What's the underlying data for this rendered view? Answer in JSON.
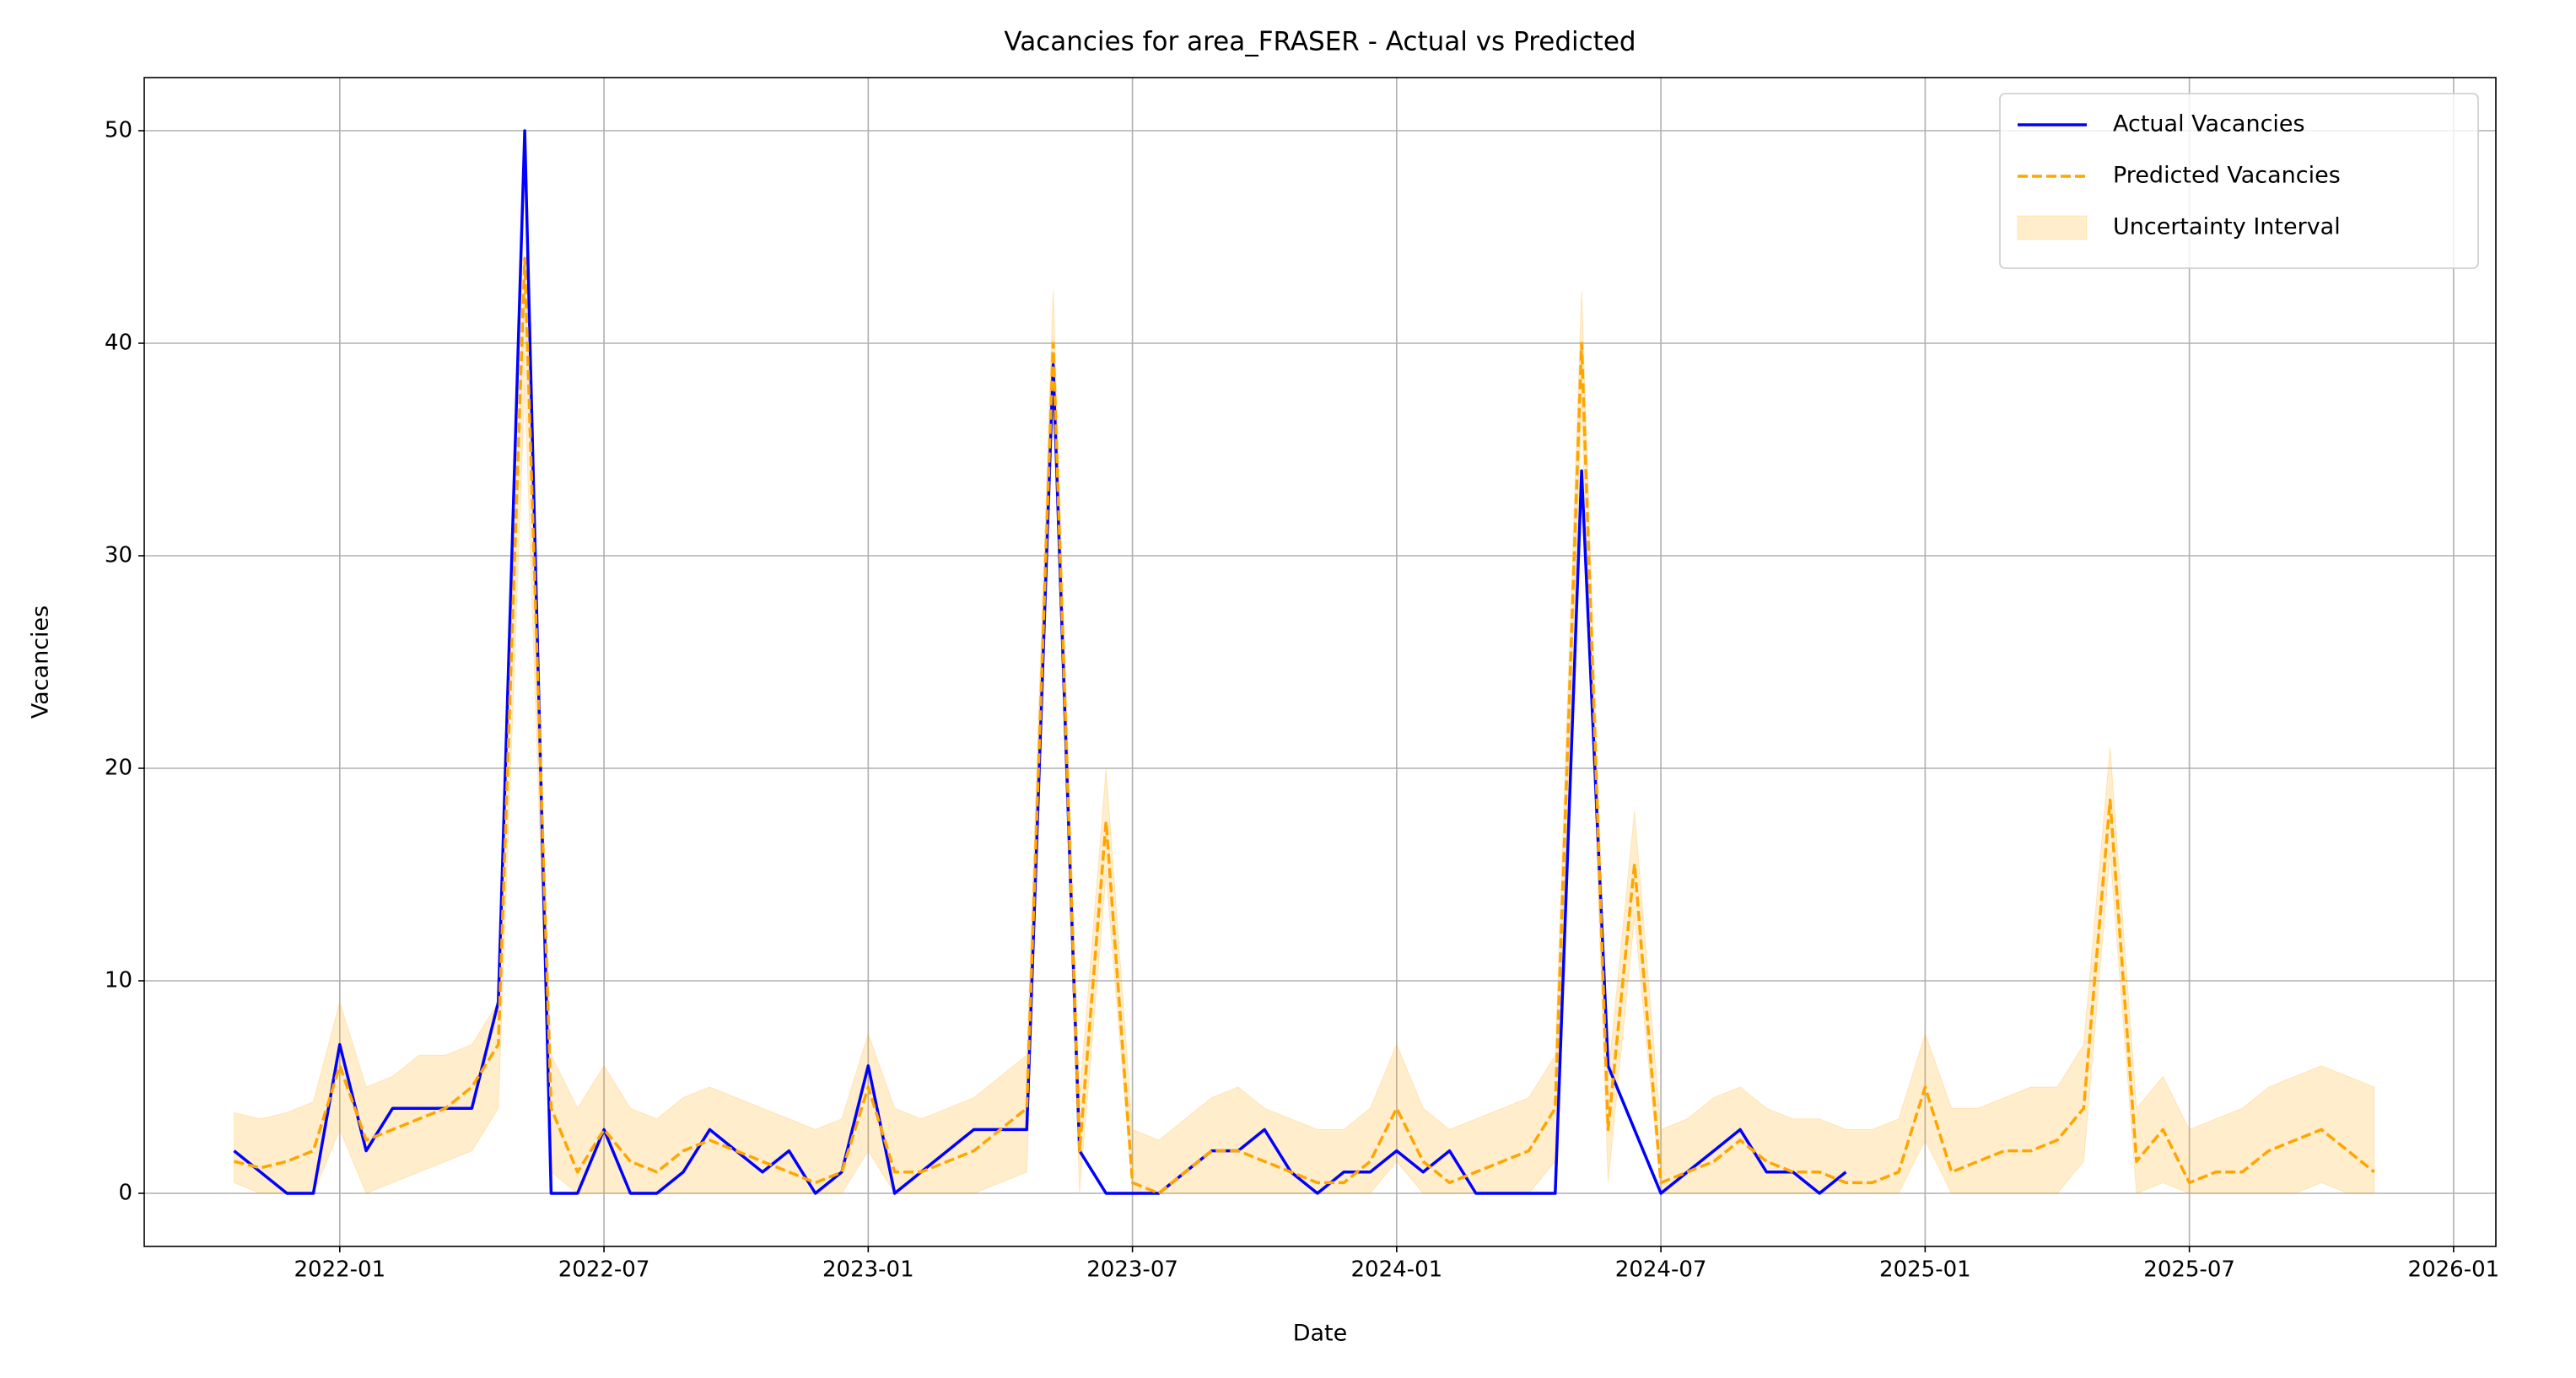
{
  "chart_data": {
    "type": "line",
    "title": "Vacancies for area_FRASER - Actual vs Predicted",
    "x_label": "Date",
    "y_label": "Vacancies",
    "x": [
      2021.8,
      2021.85,
      2021.9,
      2021.95,
      2022.0,
      2022.05,
      2022.1,
      2022.15,
      2022.2,
      2022.25,
      2022.3,
      2022.35,
      2022.4,
      2022.45,
      2022.5,
      2022.55,
      2022.6,
      2022.65,
      2022.7,
      2022.75,
      2022.8,
      2022.85,
      2022.9,
      2022.95,
      2023.0,
      2023.05,
      2023.1,
      2023.15,
      2023.2,
      2023.25,
      2023.3,
      2023.35,
      2023.4,
      2023.45,
      2023.5,
      2023.55,
      2023.6,
      2023.65,
      2023.7,
      2023.75,
      2023.8,
      2023.85,
      2023.9,
      2023.95,
      2024.0,
      2024.05,
      2024.1,
      2024.15,
      2024.2,
      2024.25,
      2024.3,
      2024.35,
      2024.4,
      2024.45,
      2024.5,
      2024.55,
      2024.6,
      2024.65,
      2024.7,
      2024.75,
      2024.8,
      2024.85,
      2024.9,
      2024.95,
      2025.0,
      2025.05,
      2025.1,
      2025.15,
      2025.2,
      2025.25,
      2025.3,
      2025.35,
      2025.4,
      2025.45,
      2025.5,
      2025.55,
      2025.6,
      2025.65,
      2025.7,
      2025.75,
      2025.8,
      2025.85
    ],
    "series": [
      {
        "name": "Actual Vacancies",
        "color": "#0000ff",
        "style": "solid",
        "values": [
          2,
          1,
          0,
          0,
          7,
          2,
          4,
          4,
          4,
          4,
          9,
          50,
          0,
          0,
          3,
          0,
          0,
          1,
          3,
          2,
          1,
          2,
          0,
          1,
          6,
          0,
          1,
          2,
          3,
          3,
          3,
          39,
          2,
          0,
          0,
          0,
          1,
          2,
          2,
          3,
          1,
          0,
          1,
          1,
          2,
          1,
          2,
          0,
          0,
          0,
          0,
          34,
          6,
          3,
          0,
          1,
          2,
          3,
          1,
          1,
          0,
          1,
          null,
          null,
          null,
          null,
          null,
          null,
          null,
          null,
          null,
          null,
          null,
          null,
          null,
          null,
          null,
          null,
          null,
          null,
          null,
          null
        ]
      },
      {
        "name": "Predicted Vacancies",
        "color": "#ffa500",
        "style": "dashed",
        "values": [
          1.5,
          1.2,
          1.5,
          2,
          6,
          2.5,
          3,
          3.5,
          4,
          5,
          7,
          44,
          4,
          1,
          3,
          1.5,
          1,
          2,
          2.5,
          2,
          1.5,
          1,
          0.5,
          1,
          5,
          1,
          1,
          1.5,
          2,
          3,
          4,
          40,
          2,
          17.5,
          0.5,
          0,
          1,
          2,
          2,
          1.5,
          1,
          0.5,
          0.5,
          1.5,
          4,
          1.5,
          0.5,
          1,
          1.5,
          2,
          4,
          40,
          3,
          15.5,
          0.5,
          1,
          1.5,
          2.5,
          1.5,
          1,
          1,
          0.5,
          0.5,
          1,
          5,
          1,
          1.5,
          2,
          2,
          2.5,
          4,
          18.5,
          1.5,
          3,
          0.5,
          1,
          1,
          2,
          2.5,
          3,
          2,
          1
        ]
      },
      {
        "name": "Uncertainty Interval",
        "color": "#ffa500",
        "style": "band",
        "lower": [
          0.5,
          0,
          0,
          0,
          3,
          0,
          0.5,
          1,
          1.5,
          2,
          4,
          38,
          1,
          0,
          0,
          0,
          0,
          0,
          0,
          0,
          0,
          0,
          0,
          0,
          2,
          0,
          0,
          0,
          0,
          0.5,
          1,
          37,
          0,
          15,
          0,
          0,
          0,
          0,
          0,
          0,
          0,
          0,
          0,
          0,
          1.5,
          0,
          0,
          0,
          0,
          0,
          1.5,
          37,
          0.5,
          13,
          0,
          0,
          0,
          0,
          0,
          0,
          0,
          0,
          0,
          0,
          2.5,
          0,
          0,
          0,
          0,
          0,
          1.5,
          16,
          0,
          0.5,
          0,
          0,
          0,
          0,
          0,
          0.5,
          0,
          0
        ],
        "upper": [
          3.8,
          3.5,
          3.8,
          4.3,
          9,
          5,
          5.5,
          6.5,
          6.5,
          7,
          9,
          44,
          6.5,
          4,
          6,
          4,
          3.5,
          4.5,
          5,
          4.5,
          4,
          3.5,
          3,
          3.5,
          7.5,
          4,
          3.5,
          4,
          4.5,
          5.5,
          6.5,
          42.5,
          4.5,
          20,
          3,
          2.5,
          3.5,
          4.5,
          5,
          4,
          3.5,
          3,
          3,
          4,
          7,
          4,
          3,
          3.5,
          4,
          4.5,
          6.5,
          42.5,
          5.5,
          18,
          3,
          3.5,
          4.5,
          5,
          4,
          3.5,
          3.5,
          3,
          3,
          3.5,
          7.5,
          4,
          4,
          4.5,
          5,
          5,
          7,
          21,
          4,
          5.5,
          3,
          3.5,
          4,
          5,
          5.5,
          6,
          5.5,
          5
        ]
      }
    ],
    "xlim": [
      2021.63,
      2026.08
    ],
    "ylim": [
      -2.5,
      52.5
    ],
    "xticks": [
      {
        "value": 2022.0,
        "label": "2022-01"
      },
      {
        "value": 2022.5,
        "label": "2022-07"
      },
      {
        "value": 2023.0,
        "label": "2023-01"
      },
      {
        "value": 2023.5,
        "label": "2023-07"
      },
      {
        "value": 2024.0,
        "label": "2024-01"
      },
      {
        "value": 2024.5,
        "label": "2024-07"
      },
      {
        "value": 2025.0,
        "label": "2025-01"
      },
      {
        "value": 2025.5,
        "label": "2025-07"
      },
      {
        "value": 2026.0,
        "label": "2026-01"
      }
    ],
    "yticks": [
      0,
      10,
      20,
      30,
      40,
      50
    ],
    "grid": true,
    "legend": "upper right"
  }
}
